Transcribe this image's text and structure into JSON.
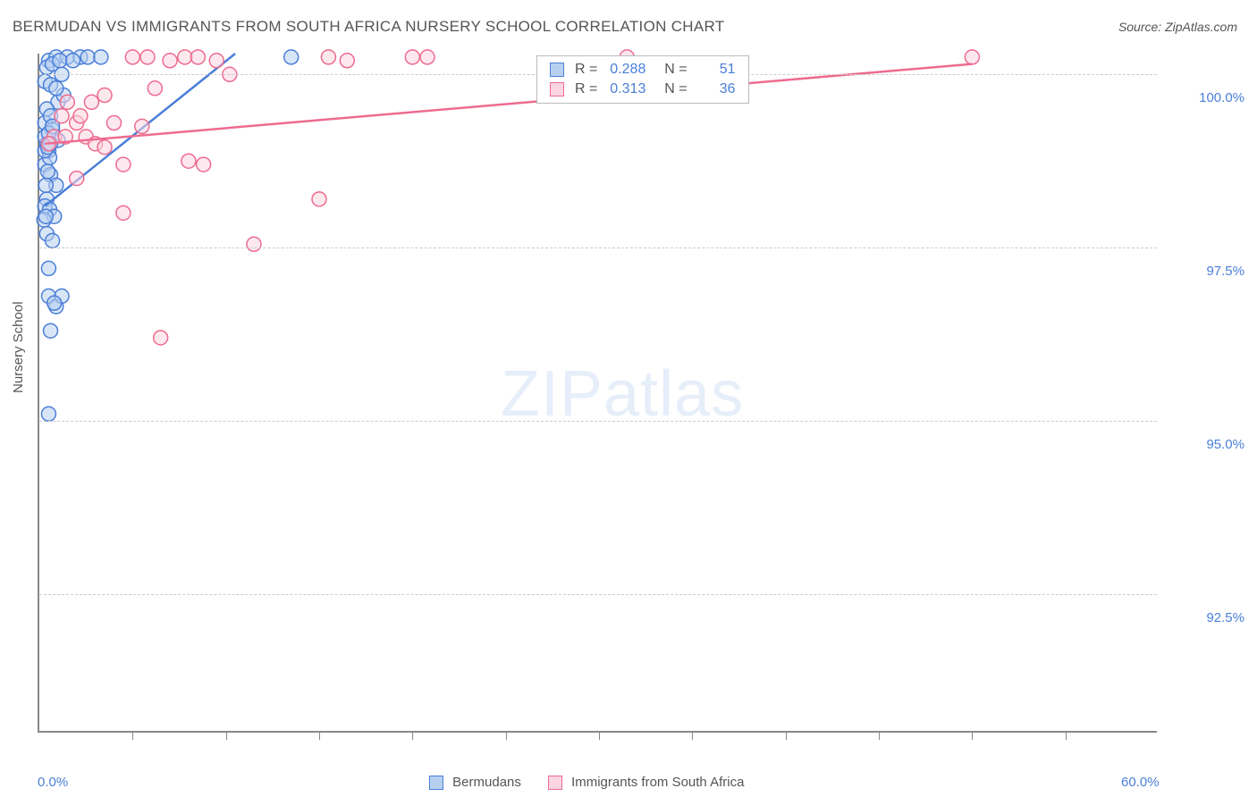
{
  "title": "BERMUDAN VS IMMIGRANTS FROM SOUTH AFRICA NURSERY SCHOOL CORRELATION CHART",
  "source": "Source: ZipAtlas.com",
  "watermark_bold": "ZIP",
  "watermark_thin": "atlas",
  "y_axis_title": "Nursery School",
  "chart": {
    "type": "scatter",
    "x_domain": [
      0,
      60
    ],
    "y_domain": [
      90.5,
      100.3
    ],
    "x_ticks_minor": [
      5,
      10,
      15,
      20,
      25,
      30,
      35,
      40,
      45,
      50,
      55
    ],
    "x_labels": [
      {
        "v": 0,
        "t": "0.0%"
      },
      {
        "v": 60,
        "t": "60.0%"
      }
    ],
    "y_gridlines": [
      92.5,
      95.0,
      97.5,
      100.0
    ],
    "y_labels": [
      {
        "v": 92.5,
        "t": "92.5%"
      },
      {
        "v": 95.0,
        "t": "95.0%"
      },
      {
        "v": 97.5,
        "t": "97.5%"
      },
      {
        "v": 100.0,
        "t": "100.0%"
      }
    ],
    "series": [
      {
        "name": "Bermudans",
        "color_stroke": "#4a7fd8",
        "color_fill": "#b8d0f0",
        "marker_radius": 8,
        "r_value": "0.288",
        "n_value": "51",
        "trend_line": {
          "x1": 0.3,
          "y1": 98.1,
          "x2": 10.5,
          "y2": 100.3
        },
        "points": [
          [
            0.5,
            100.2
          ],
          [
            0.9,
            100.25
          ],
          [
            1.5,
            100.25
          ],
          [
            2.2,
            100.25
          ],
          [
            2.6,
            100.25
          ],
          [
            3.3,
            100.25
          ],
          [
            0.3,
            99.9
          ],
          [
            0.6,
            99.85
          ],
          [
            1.0,
            99.6
          ],
          [
            1.3,
            99.7
          ],
          [
            0.4,
            99.5
          ],
          [
            0.3,
            99.3
          ],
          [
            0.7,
            99.2
          ],
          [
            1.0,
            99.05
          ],
          [
            0.5,
            98.9
          ],
          [
            0.3,
            98.7
          ],
          [
            0.6,
            98.55
          ],
          [
            0.9,
            98.4
          ],
          [
            0.4,
            98.2
          ],
          [
            0.3,
            98.1
          ],
          [
            0.55,
            98.05
          ],
          [
            0.8,
            97.95
          ],
          [
            0.4,
            97.7
          ],
          [
            0.7,
            97.6
          ],
          [
            0.5,
            96.8
          ],
          [
            0.9,
            96.65
          ],
          [
            1.2,
            96.8
          ],
          [
            0.6,
            96.3
          ],
          [
            0.5,
            95.1
          ],
          [
            13.5,
            100.25
          ],
          [
            0.4,
            99.0
          ],
          [
            0.6,
            99.4
          ],
          [
            0.9,
            99.8
          ],
          [
            1.2,
            100.0
          ],
          [
            0.35,
            98.4
          ],
          [
            0.45,
            98.6
          ],
          [
            0.55,
            98.8
          ],
          [
            0.25,
            97.9
          ],
          [
            0.35,
            97.95
          ],
          [
            0.3,
            99.1
          ],
          [
            0.5,
            99.15
          ],
          [
            0.7,
            99.25
          ],
          [
            0.4,
            100.1
          ],
          [
            0.7,
            100.15
          ],
          [
            1.1,
            100.2
          ],
          [
            1.8,
            100.2
          ],
          [
            0.3,
            98.9
          ],
          [
            0.45,
            98.95
          ],
          [
            0.6,
            99.0
          ],
          [
            0.8,
            96.7
          ],
          [
            0.5,
            97.2
          ]
        ]
      },
      {
        "name": "Immigrants from South Africa",
        "color_stroke": "#ed6b8f",
        "color_fill": "#fbd5e1",
        "marker_radius": 8,
        "r_value": "0.313",
        "n_value": "36",
        "trend_line": {
          "x1": 0.3,
          "y1": 99.0,
          "x2": 50,
          "y2": 100.15
        },
        "points": [
          [
            0.8,
            99.1
          ],
          [
            1.4,
            99.1
          ],
          [
            2.0,
            99.3
          ],
          [
            2.5,
            99.1
          ],
          [
            3.0,
            99.0
          ],
          [
            1.5,
            99.6
          ],
          [
            2.8,
            99.6
          ],
          [
            3.5,
            99.7
          ],
          [
            4.0,
            99.3
          ],
          [
            5.5,
            99.25
          ],
          [
            5.0,
            100.25
          ],
          [
            5.8,
            100.25
          ],
          [
            7.0,
            100.2
          ],
          [
            7.8,
            100.25
          ],
          [
            8.5,
            100.25
          ],
          [
            9.5,
            100.2
          ],
          [
            15.5,
            100.25
          ],
          [
            16.5,
            100.2
          ],
          [
            20.0,
            100.25
          ],
          [
            20.8,
            100.25
          ],
          [
            31.5,
            100.25
          ],
          [
            50.0,
            100.25
          ],
          [
            3.5,
            98.95
          ],
          [
            4.5,
            98.7
          ],
          [
            8.0,
            98.75
          ],
          [
            8.8,
            98.7
          ],
          [
            2.0,
            98.5
          ],
          [
            4.5,
            98.0
          ],
          [
            15.0,
            98.2
          ],
          [
            11.5,
            97.55
          ],
          [
            6.5,
            96.2
          ],
          [
            1.2,
            99.4
          ],
          [
            2.2,
            99.4
          ],
          [
            6.2,
            99.8
          ],
          [
            10.2,
            100.0
          ],
          [
            0.5,
            99.0
          ]
        ]
      }
    ]
  },
  "legend_bottom": {
    "series1_label": "Bermudans",
    "series2_label": "Immigrants from South Africa"
  },
  "legend_box": {
    "r_label": "R =",
    "n_label": "N ="
  },
  "colors": {
    "axis": "#888888",
    "grid": "#cccccc",
    "text": "#555555",
    "value": "#4a7fd8"
  }
}
